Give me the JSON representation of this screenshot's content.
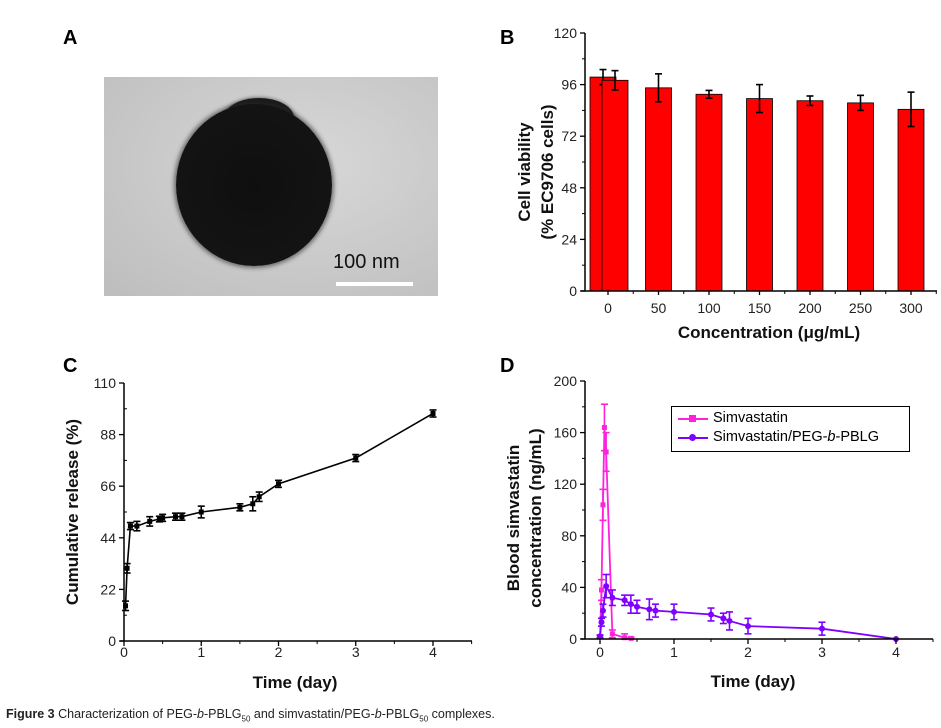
{
  "panels": {
    "a": {
      "letter": "A",
      "scale_bar_label": "100 nm"
    },
    "b": {
      "letter": "B"
    },
    "c": {
      "letter": "C"
    },
    "d": {
      "letter": "D"
    }
  },
  "caption": {
    "prefix": "Figure 3",
    "text_1": " Characterization of PEG-",
    "italic_b": "b",
    "text_2": "-PBLG",
    "sub": "50",
    "text_3": " and simvastatin/PEG-",
    "text_4": "-PBLG",
    "text_5": " complexes."
  },
  "colors": {
    "bar": "#ff0000",
    "simvastatin": "#ff22dd",
    "complex": "#7f00ff",
    "release": "#000000"
  },
  "chart_data": [
    {
      "id": "b",
      "type": "bar",
      "title": "",
      "xlabel": "Concentration (μg/mL)",
      "ylabel_line1": "Cell viability",
      "ylabel_line2": "(% EC9706 cells)",
      "ylim": [
        0,
        120
      ],
      "yticks": [
        0,
        24,
        48,
        72,
        96,
        120
      ],
      "categories": [
        "0",
        "50",
        "100",
        "150",
        "200",
        "250",
        "300"
      ],
      "values": [
        98,
        94.5,
        91.5,
        89.5,
        88.5,
        87.5,
        84.5
      ],
      "errors": [
        4.5,
        6.5,
        1.8,
        6.5,
        2.2,
        3.5,
        8
      ],
      "extra_bar": {
        "category": "0",
        "value": 99.5,
        "error": 3.5
      }
    },
    {
      "id": "c",
      "type": "line",
      "title": "",
      "xlabel": "Time (day)",
      "ylabel": "Cumulative release (%)",
      "xlim": [
        0,
        4.5
      ],
      "ylim": [
        0,
        110
      ],
      "xticks": [
        0,
        1,
        2,
        3,
        4
      ],
      "yticks": [
        0,
        22,
        44,
        66,
        88,
        110
      ],
      "series": [
        {
          "name": "Cumulative release",
          "x": [
            0.02,
            0.04,
            0.083,
            0.167,
            0.333,
            0.458,
            0.5,
            0.667,
            0.75,
            1,
            1.5,
            1.667,
            1.75,
            2,
            3,
            4
          ],
          "y": [
            15,
            31,
            49,
            49,
            51,
            52,
            52.5,
            53,
            53,
            55,
            57,
            58.5,
            61.5,
            67,
            78,
            97
          ],
          "err": [
            2,
            2,
            1.5,
            2,
            2,
            1.2,
            1.5,
            1.5,
            1.5,
            2.5,
            1.5,
            3,
            2,
            1.5,
            1.5,
            1.5
          ]
        }
      ]
    },
    {
      "id": "d",
      "type": "line",
      "title": "",
      "xlabel": "Time (day)",
      "ylabel_line1": "Blood simvastatin",
      "ylabel_line2": "concentration (ng/mL)",
      "xlim": [
        -0.2,
        4.5
      ],
      "ylim": [
        0,
        200
      ],
      "xticks": [
        0,
        1,
        2,
        3,
        4
      ],
      "yticks": [
        0,
        40,
        80,
        120,
        160,
        200
      ],
      "legend_position": "top-right",
      "series": [
        {
          "name": "Simvastatin",
          "color_key": "simvastatin",
          "marker": "square",
          "x": [
            0.0,
            0.02,
            0.04,
            0.06,
            0.083,
            0.167,
            0.333,
            0.42
          ],
          "y": [
            2,
            38,
            104,
            164,
            145,
            4,
            1,
            0.5
          ],
          "err": [
            1,
            8,
            12,
            18,
            15,
            3,
            3,
            1
          ]
        },
        {
          "name": "Simvastatin/PEG-b-PBLG",
          "color_key": "complex",
          "marker": "circle",
          "x": [
            0.0,
            0.02,
            0.04,
            0.083,
            0.167,
            0.333,
            0.417,
            0.5,
            0.667,
            0.75,
            1,
            1.5,
            1.667,
            1.75,
            2,
            3,
            4
          ],
          "y": [
            2,
            13,
            22,
            41,
            32,
            30,
            27,
            25,
            23,
            22,
            21,
            19,
            16,
            14,
            10,
            8,
            0
          ],
          "err": [
            1,
            3,
            5,
            9,
            6,
            4,
            7,
            5,
            8,
            5,
            6,
            5,
            4,
            7,
            6,
            5,
            0
          ]
        }
      ],
      "legend_entries": [
        "Simvastatin",
        "Simvastatin/PEG-b-PBLG"
      ]
    }
  ]
}
